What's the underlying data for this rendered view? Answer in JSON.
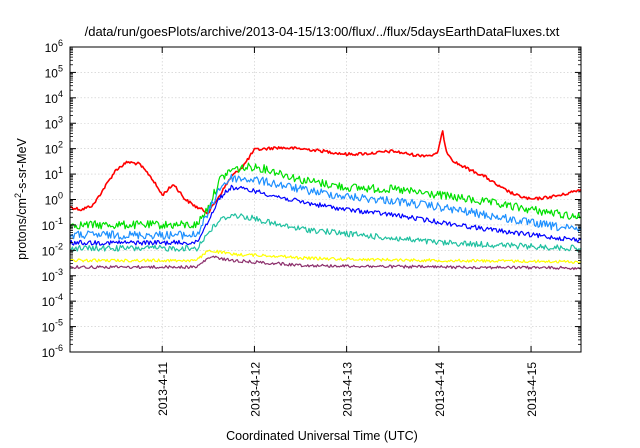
{
  "chart_data": {
    "type": "line",
    "title": "/data/run/goesPlots/archive/2013-04-15/13:00/flux/../flux/5daysEarthDataFluxes.txt",
    "xlabel": "Coordinated Universal Time (UTC)",
    "ylabel": "protons/cm²-s-sr-MeV",
    "ylabel_parts": {
      "prefix": "protons/cm",
      "sup": "2",
      "suffix": "-s-sr-MeV"
    },
    "yscale": "log",
    "ylim": [
      1e-06,
      1000000.0
    ],
    "xlim": [
      "2013-04-10T00:00",
      "2013-04-15T13:00"
    ],
    "grid": true,
    "x_ticks": [
      "2013-4-11",
      "2013-4-12",
      "2013-4-13",
      "2013-4-14",
      "2013-4-15"
    ],
    "y_ticks": [
      {
        "base": "10",
        "exp": "-6"
      },
      {
        "base": "10",
        "exp": "-5"
      },
      {
        "base": "10",
        "exp": "-4"
      },
      {
        "base": "10",
        "exp": "-3"
      },
      {
        "base": "10",
        "exp": "-2"
      },
      {
        "base": "10",
        "exp": "-1"
      },
      {
        "base": "10",
        "exp": "0"
      },
      {
        "base": "10",
        "exp": "1"
      },
      {
        "base": "10",
        "exp": "2"
      },
      {
        "base": "10",
        "exp": "3"
      },
      {
        "base": "10",
        "exp": "4"
      },
      {
        "base": "10",
        "exp": "5"
      },
      {
        "base": "10",
        "exp": "6"
      }
    ],
    "series": [
      {
        "color": "#ff0000",
        "noise": 0.05,
        "x": [
          "2013-04-10T00:00",
          "2013-04-10T03:00",
          "2013-04-10T06:00",
          "2013-04-10T09:00",
          "2013-04-10T12:00",
          "2013-04-10T15:00",
          "2013-04-10T18:00",
          "2013-04-10T21:00",
          "2013-04-11T00:00",
          "2013-04-11T03:00",
          "2013-04-11T06:00",
          "2013-04-11T09:00",
          "2013-04-11T12:00",
          "2013-04-11T15:00",
          "2013-04-11T18:00",
          "2013-04-11T21:00",
          "2013-04-12T00:00",
          "2013-04-12T06:00",
          "2013-04-12T12:00",
          "2013-04-12T18:00",
          "2013-04-13T00:00",
          "2013-04-13T06:00",
          "2013-04-13T12:00",
          "2013-04-13T18:00",
          "2013-04-13T22:00",
          "2013-04-13T23:30",
          "2013-04-14T01:00",
          "2013-04-14T02:00",
          "2013-04-14T04:00",
          "2013-04-14T08:00",
          "2013-04-14T12:00",
          "2013-04-14T16:00",
          "2013-04-14T20:00",
          "2013-04-15T00:00",
          "2013-04-15T04:00",
          "2013-04-15T08:00",
          "2013-04-15T13:00"
        ],
        "y": [
          0.5,
          0.4,
          0.6,
          3,
          15,
          30,
          25,
          8,
          1.5,
          4,
          1,
          0.5,
          0.3,
          1.5,
          8,
          20,
          90,
          110,
          100,
          80,
          60,
          65,
          80,
          55,
          55,
          60,
          450,
          80,
          30,
          15,
          8,
          3,
          1.5,
          1,
          1.2,
          1.5,
          2.5
        ]
      },
      {
        "color": "#00e000",
        "noise": 0.14,
        "x": [
          "2013-04-10T00:00",
          "2013-04-11T00:00",
          "2013-04-11T09:00",
          "2013-04-11T12:00",
          "2013-04-11T15:00",
          "2013-04-11T18:00",
          "2013-04-12T00:00",
          "2013-04-12T06:00",
          "2013-04-12T12:00",
          "2013-04-13T00:00",
          "2013-04-13T12:00",
          "2013-04-14T00:00",
          "2013-04-14T12:00",
          "2013-04-15T00:00",
          "2013-04-15T13:00"
        ],
        "y": [
          0.1,
          0.1,
          0.1,
          0.5,
          6,
          15,
          20,
          12,
          6,
          3,
          2.5,
          1.5,
          0.8,
          0.4,
          0.2
        ]
      },
      {
        "color": "#1e90ff",
        "noise": 0.14,
        "x": [
          "2013-04-10T00:00",
          "2013-04-11T00:00",
          "2013-04-11T09:00",
          "2013-04-11T12:00",
          "2013-04-11T15:00",
          "2013-04-11T18:00",
          "2013-04-12T00:00",
          "2013-04-12T06:00",
          "2013-04-12T12:00",
          "2013-04-13T00:00",
          "2013-04-13T12:00",
          "2013-04-14T00:00",
          "2013-04-14T12:00",
          "2013-04-15T00:00",
          "2013-04-15T13:00"
        ],
        "y": [
          0.04,
          0.04,
          0.04,
          0.3,
          3,
          7,
          6,
          4,
          2.5,
          1.3,
          0.9,
          0.5,
          0.25,
          0.12,
          0.06
        ]
      },
      {
        "color": "#0000ff",
        "noise": 0.08,
        "x": [
          "2013-04-10T00:00",
          "2013-04-11T00:00",
          "2013-04-11T09:00",
          "2013-04-11T12:00",
          "2013-04-11T15:00",
          "2013-04-11T18:00",
          "2013-04-12T00:00",
          "2013-04-12T06:00",
          "2013-04-12T12:00",
          "2013-04-13T00:00",
          "2013-04-13T12:00",
          "2013-04-14T00:00",
          "2013-04-14T12:00",
          "2013-04-15T00:00",
          "2013-04-15T13:00"
        ],
        "y": [
          0.02,
          0.02,
          0.02,
          0.15,
          1.2,
          3,
          2.2,
          1.3,
          0.8,
          0.4,
          0.25,
          0.13,
          0.07,
          0.04,
          0.025
        ]
      },
      {
        "color": "#20c0a0",
        "noise": 0.1,
        "x": [
          "2013-04-10T00:00",
          "2013-04-11T00:00",
          "2013-04-11T09:00",
          "2013-04-11T12:00",
          "2013-04-11T15:00",
          "2013-04-11T18:00",
          "2013-04-12T00:00",
          "2013-04-12T06:00",
          "2013-04-12T12:00",
          "2013-04-13T00:00",
          "2013-04-13T12:00",
          "2013-04-14T00:00",
          "2013-04-14T12:00",
          "2013-04-15T00:00",
          "2013-04-15T13:00"
        ],
        "y": [
          0.012,
          0.012,
          0.012,
          0.05,
          0.15,
          0.25,
          0.18,
          0.1,
          0.07,
          0.045,
          0.03,
          0.02,
          0.017,
          0.014,
          0.012
        ]
      },
      {
        "color": "#ffff00",
        "noise": 0.05,
        "x": [
          "2013-04-10T00:00",
          "2013-04-11T00:00",
          "2013-04-11T09:00",
          "2013-04-11T12:00",
          "2013-04-11T14:00",
          "2013-04-11T18:00",
          "2013-04-12T06:00",
          "2013-04-12T12:00",
          "2013-04-13T00:00",
          "2013-04-14T00:00",
          "2013-04-15T00:00",
          "2013-04-15T13:00"
        ],
        "y": [
          0.004,
          0.004,
          0.004,
          0.01,
          0.009,
          0.007,
          0.006,
          0.005,
          0.0045,
          0.004,
          0.0037,
          0.0035
        ]
      },
      {
        "color": "#8b2e6b",
        "noise": 0.05,
        "x": [
          "2013-04-10T00:00",
          "2013-04-11T00:00",
          "2013-04-11T09:00",
          "2013-04-11T12:00",
          "2013-04-11T13:00",
          "2013-04-11T18:00",
          "2013-04-12T06:00",
          "2013-04-12T12:00",
          "2013-04-13T00:00",
          "2013-04-14T00:00",
          "2013-04-15T00:00",
          "2013-04-15T13:00"
        ],
        "y": [
          0.0022,
          0.0022,
          0.0022,
          0.005,
          0.0055,
          0.004,
          0.003,
          0.0026,
          0.0024,
          0.0022,
          0.0021,
          0.002
        ]
      }
    ]
  }
}
